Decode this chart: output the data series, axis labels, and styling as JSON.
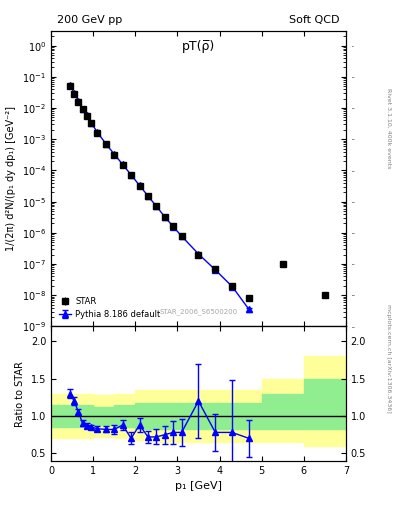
{
  "title_main": "pT(ρ̅)",
  "header_left": "200 GeV pp",
  "header_right": "Soft QCD",
  "watermark": "STAR_2006_S6500200",
  "rivet_label": "Rivet 3.1.10, 400k events",
  "arxiv_label": "mcplots.cern.ch [arXiv:1306.3436]",
  "star_x": [
    0.45,
    0.55,
    0.65,
    0.75,
    0.85,
    0.95,
    1.1,
    1.3,
    1.5,
    1.7,
    1.9,
    2.1,
    2.3,
    2.5,
    2.7,
    2.9,
    3.1,
    3.5,
    3.9,
    4.3,
    4.7,
    5.5,
    6.5
  ],
  "star_y": [
    0.05,
    0.028,
    0.016,
    0.009,
    0.0055,
    0.0033,
    0.0016,
    0.0007,
    0.00032,
    0.00015,
    7e-05,
    3.2e-05,
    1.5e-05,
    7e-06,
    3.2e-06,
    1.6e-06,
    8e-07,
    2e-07,
    7e-08,
    2e-08,
    8e-09,
    1e-07,
    1e-08
  ],
  "star_yerr": [
    0.003,
    0.0015,
    0.0008,
    0.0005,
    0.0003,
    0.0002,
    0.0001,
    4e-05,
    2e-05,
    8e-06,
    4e-06,
    2e-06,
    1e-06,
    5e-07,
    2e-07,
    1e-07,
    5e-08,
    1.5e-08,
    5e-09,
    2e-09,
    1e-09,
    5e-09,
    1e-09
  ],
  "pythia_x": [
    0.45,
    0.55,
    0.65,
    0.75,
    0.85,
    0.95,
    1.1,
    1.3,
    1.5,
    1.7,
    1.9,
    2.1,
    2.3,
    2.5,
    2.7,
    2.9,
    3.1,
    3.5,
    3.9,
    4.3,
    4.7
  ],
  "pythia_y": [
    0.055,
    0.03,
    0.017,
    0.0095,
    0.0058,
    0.0034,
    0.00165,
    0.00072,
    0.00033,
    0.000155,
    7.2e-05,
    3.3e-05,
    1.52e-05,
    7.1e-06,
    3.25e-06,
    1.58e-06,
    7.8e-07,
    2.1e-07,
    6.5e-08,
    1.9e-08,
    3.5e-09
  ],
  "pythia_yerr": [
    0.001,
    0.0007,
    0.0004,
    0.0002,
    0.00015,
    9e-05,
    4e-05,
    2e-05,
    9e-06,
    4e-06,
    2e-06,
    1e-06,
    5e-07,
    3e-07,
    1.5e-07,
    8e-08,
    4e-08,
    1e-08,
    5e-09,
    2e-09,
    5e-10
  ],
  "ratio_x": [
    0.45,
    0.55,
    0.65,
    0.75,
    0.85,
    0.95,
    1.1,
    1.3,
    1.5,
    1.7,
    1.9,
    2.1,
    2.3,
    2.5,
    2.7,
    2.9,
    3.1,
    3.5,
    3.9,
    4.3,
    4.7
  ],
  "ratio_y": [
    1.3,
    1.2,
    1.05,
    0.9,
    0.87,
    0.85,
    0.83,
    0.82,
    0.82,
    0.88,
    0.7,
    0.88,
    0.72,
    0.72,
    0.75,
    0.78,
    0.78,
    1.2,
    0.78,
    0.78,
    0.7
  ],
  "ratio_yerr": [
    0.06,
    0.05,
    0.04,
    0.04,
    0.03,
    0.03,
    0.03,
    0.04,
    0.06,
    0.07,
    0.08,
    0.09,
    0.08,
    0.1,
    0.12,
    0.15,
    0.18,
    0.5,
    0.25,
    0.7,
    0.25
  ],
  "band_x": [
    0.0,
    0.5,
    1.0,
    1.5,
    2.0,
    2.5,
    3.0,
    3.5,
    4.0,
    4.5,
    5.0,
    5.5,
    6.0,
    6.5,
    7.0
  ],
  "band_inner_lo": [
    0.85,
    0.85,
    0.88,
    0.85,
    0.82,
    0.82,
    0.82,
    0.82,
    0.82,
    0.82,
    0.82,
    0.82,
    0.82,
    0.82,
    0.82
  ],
  "band_inner_hi": [
    1.15,
    1.15,
    1.12,
    1.15,
    1.18,
    1.18,
    1.18,
    1.18,
    1.18,
    1.18,
    1.3,
    1.3,
    1.5,
    1.5,
    1.5
  ],
  "band_outer_lo": [
    0.7,
    0.7,
    0.72,
    0.7,
    0.68,
    0.65,
    0.65,
    0.65,
    0.65,
    0.65,
    0.65,
    0.65,
    0.6,
    0.6,
    0.6
  ],
  "band_outer_hi": [
    1.3,
    1.3,
    1.28,
    1.3,
    1.35,
    1.35,
    1.35,
    1.35,
    1.35,
    1.35,
    1.5,
    1.5,
    1.8,
    1.8,
    1.8
  ],
  "xlim": [
    0,
    7
  ],
  "ylim_main": [
    1e-09,
    3
  ],
  "ylim_ratio": [
    0.4,
    2.2
  ],
  "ylabel_main": "1/(2π) d²N/(p₁ dy dp₁) [GeV⁻²]",
  "ylabel_ratio": "Ratio to STAR",
  "xlabel": "p₁ [GeV]",
  "color_star": "black",
  "color_pythia": "blue",
  "color_band_inner": "#90EE90",
  "color_band_outer": "#FFFF99",
  "legend_entries": [
    "STAR",
    "Pythia 8.186 default"
  ]
}
